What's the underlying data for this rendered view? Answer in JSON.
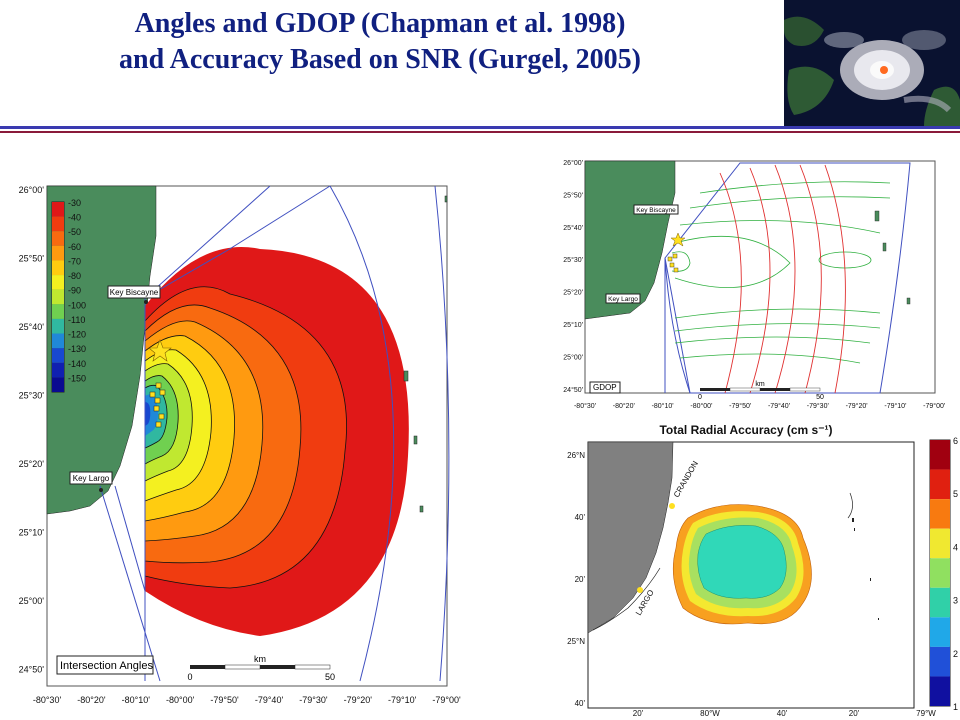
{
  "title": {
    "line1": "Angles and GDOP (Chapman et al. 1998)",
    "line2": "and Accuracy Based on SNR (Gurgel, 2005)"
  },
  "left_map": {
    "lat_labels": [
      "26°00'",
      "25°50'",
      "25°40'",
      "25°30'",
      "25°20'",
      "25°10'",
      "25°00'",
      "24°50'"
    ],
    "lon_labels": [
      "-80°30'",
      "-80°20'",
      "-80°10'",
      "-80°00'",
      "-79°50'",
      "-79°40'",
      "-79°30'",
      "-79°20'",
      "-79°10'",
      "-79°00'"
    ],
    "legend_values": [
      "-30",
      "-40",
      "-50",
      "-60",
      "-70",
      "-80",
      "-90",
      "-100",
      "-110",
      "-120",
      "-130",
      "-140",
      "-150"
    ],
    "legend_colors": [
      "#e01818",
      "#f03c10",
      "#f86a10",
      "#ff9a10",
      "#ffcc10",
      "#f4f020",
      "#c0e830",
      "#70d050",
      "#30b8a0",
      "#2088d8",
      "#1848d0",
      "#1020b0",
      "#0a0a90"
    ],
    "key_biscayne": "Key Biscayne",
    "key_largo": "Key Largo",
    "panel_label": "Intersection Angles",
    "scale_unit": "km",
    "scale_start": "0",
    "scale_end": "50"
  },
  "gdop_map": {
    "lat_labels": [
      "26°00'",
      "25°50'",
      "25°40'",
      "25°30'",
      "25°20'",
      "25°10'",
      "25°00'",
      "24°50'"
    ],
    "lon_labels": [
      "-80°30'",
      "-80°20'",
      "-80°10'",
      "-80°00'",
      "-79°50'",
      "-79°40'",
      "-79°30'",
      "-79°20'",
      "-79°10'",
      "-79°00'"
    ],
    "key_biscayne": "Key Biscayne",
    "key_largo": "Key Largo",
    "panel_label": "GDOP",
    "scale_unit": "km",
    "scale_start": "0",
    "scale_end": "50"
  },
  "accuracy_map": {
    "title": "Total Radial Accuracy (cm s⁻¹)",
    "lat_labels": [
      "26°N",
      "40'",
      "20'",
      "25°N",
      "40'"
    ],
    "lon_labels": [
      "20'",
      "80°W",
      "40'",
      "20'",
      "79°W"
    ],
    "site_crandon": "CRANDON",
    "site_largo": "LARGO",
    "colorbar_ticks": [
      "6",
      "5",
      "4",
      "3",
      "2",
      "1"
    ],
    "colorbar_colors": [
      "#a00010",
      "#e02010",
      "#f87a10",
      "#f0e830",
      "#90e060",
      "#30d0a8",
      "#20a8e8",
      "#2050d8",
      "#1010a0"
    ]
  }
}
